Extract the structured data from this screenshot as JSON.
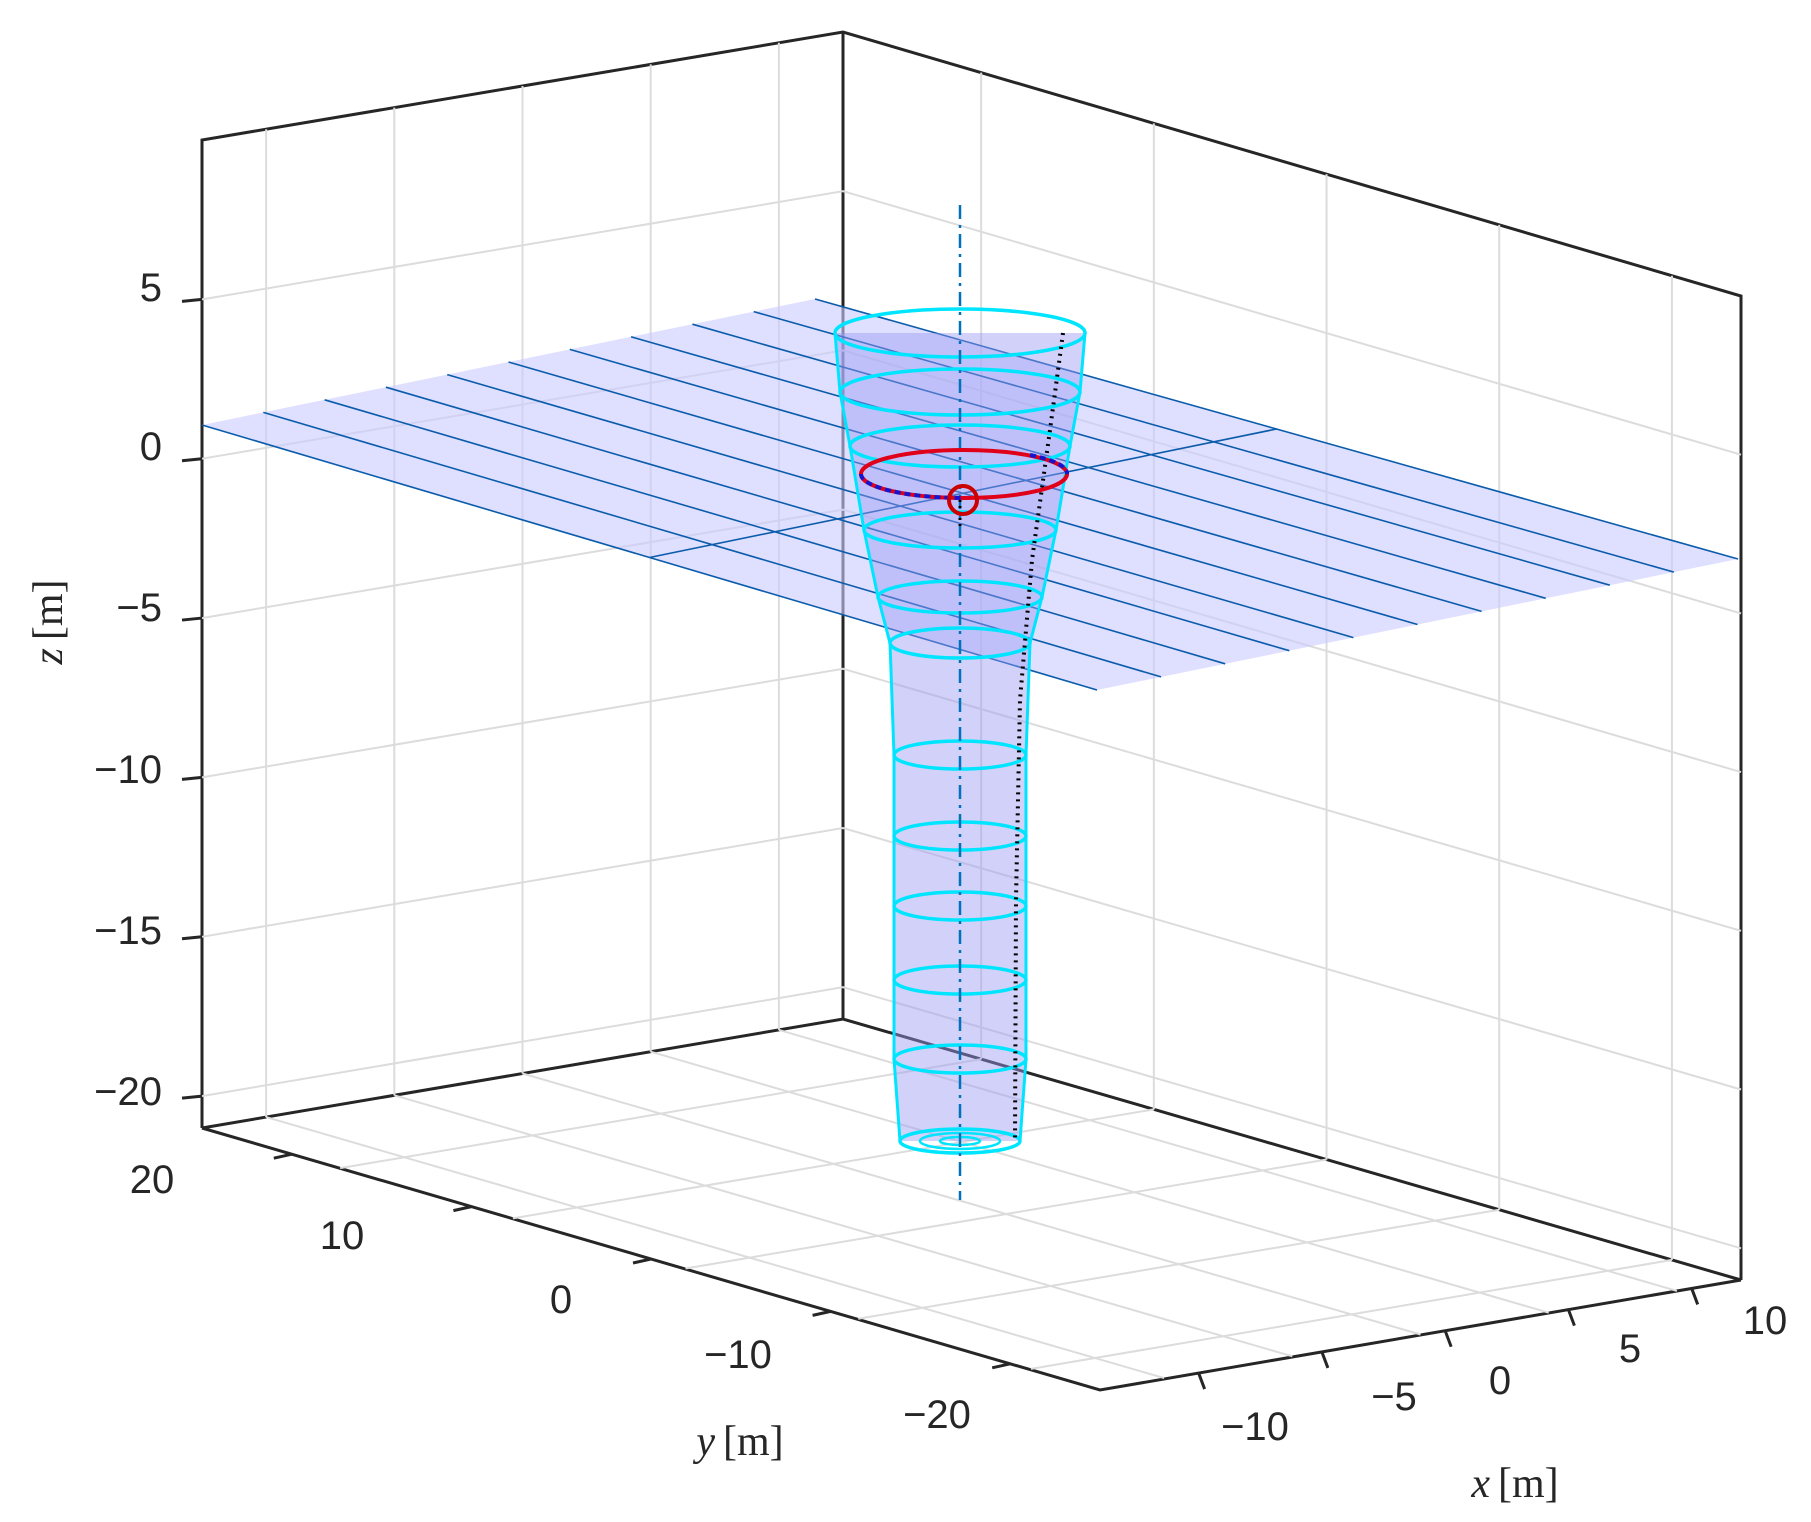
{
  "chart_data": {
    "type": "3d-line",
    "title": "",
    "axes": {
      "x": {
        "label_var": "x",
        "label_unit": "[m]",
        "ticks": [
          -10,
          -5,
          0,
          5,
          10
        ],
        "tick_labels": [
          "−10",
          "−5",
          "0",
          "5",
          "10"
        ],
        "range": [
          -14,
          12
        ]
      },
      "y": {
        "label_var": "y",
        "label_unit": "[m]",
        "ticks": [
          20,
          10,
          0,
          -10,
          -20
        ],
        "tick_labels": [
          "20",
          "10",
          "0",
          "−10",
          "−20"
        ],
        "range": [
          -25,
          25
        ]
      },
      "z": {
        "label_var": "z",
        "label_unit": "[m]",
        "ticks": [
          5,
          0,
          -5,
          -10,
          -15,
          -20
        ],
        "tick_labels": [
          "5",
          "0",
          "−5",
          "−10",
          "−15",
          "−20"
        ],
        "range": [
          -21,
          10
        ]
      }
    },
    "grid": true,
    "box": "back planes",
    "colors": {
      "surface_plane": "#c9c9ff",
      "mesh_lines": "#0b5cab",
      "cone_fill": "#9a9af2",
      "rings": "#00e5ff",
      "axis_line": "#0072bd",
      "trajectory": "#000000",
      "orbit_red": "#e0001a",
      "orbit_blue": "#1515d0"
    },
    "series": [
      {
        "kind": "horizontal plane",
        "z": 0
      },
      {
        "kind": "vertical axis line (dash-dot)",
        "x": 0,
        "y": 0
      },
      {
        "kind": "vortex tube rings",
        "z_levels": [
          3.5,
          1.5,
          -0.2,
          -3,
          -4.6,
          -6,
          -8.8,
          -11.5,
          -14,
          -16.5,
          -19,
          -21.5
        ]
      },
      {
        "kind": "dotted trajectory"
      },
      {
        "kind": "orbit ellipse",
        "z": -0.8
      },
      {
        "kind": "marker circle"
      }
    ]
  }
}
